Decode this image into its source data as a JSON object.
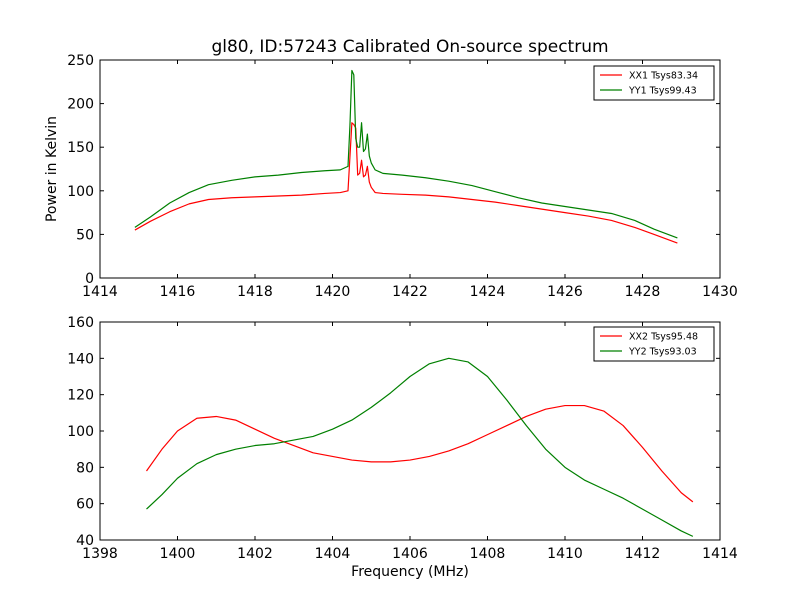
{
  "chart_data": [
    {
      "type": "line",
      "title": "gl80, ID:57243 Calibrated On-source spectrum",
      "xlabel": "",
      "ylabel": "Power in Kelvin",
      "xlim": [
        1414,
        1430
      ],
      "ylim": [
        0,
        250
      ],
      "xticks": [
        "1414",
        "1416",
        "1418",
        "1420",
        "1422",
        "1424",
        "1426",
        "1428",
        "1430"
      ],
      "yticks": [
        "0",
        "50",
        "100",
        "150",
        "200",
        "250"
      ],
      "grid": false,
      "legend_position": "top-right",
      "series": [
        {
          "name": "XX1 Tsys83.34",
          "color": "#ff0000",
          "x": [
            1414.9,
            1415.3,
            1415.8,
            1416.3,
            1416.8,
            1417.4,
            1418.0,
            1418.6,
            1419.2,
            1419.8,
            1420.2,
            1420.4,
            1420.5,
            1420.55,
            1420.6,
            1420.65,
            1420.7,
            1420.75,
            1420.8,
            1420.85,
            1420.9,
            1420.95,
            1421.0,
            1421.1,
            1421.3,
            1421.8,
            1422.4,
            1423.0,
            1423.6,
            1424.2,
            1424.8,
            1425.4,
            1426.0,
            1426.6,
            1427.2,
            1427.8,
            1428.3,
            1428.9
          ],
          "values": [
            55,
            65,
            76,
            85,
            90,
            92,
            93,
            94,
            95,
            97,
            98,
            100,
            178,
            176,
            172,
            118,
            120,
            135,
            116,
            118,
            128,
            110,
            104,
            98,
            97,
            96,
            95,
            93,
            90,
            87,
            83,
            79,
            75,
            71,
            66,
            58,
            50,
            40
          ]
        },
        {
          "name": "YY1 Tsys99.43",
          "color": "#008000",
          "x": [
            1414.9,
            1415.3,
            1415.8,
            1416.3,
            1416.8,
            1417.4,
            1418.0,
            1418.6,
            1419.2,
            1419.8,
            1420.2,
            1420.4,
            1420.45,
            1420.5,
            1420.55,
            1420.6,
            1420.65,
            1420.7,
            1420.75,
            1420.8,
            1420.85,
            1420.9,
            1420.95,
            1421.0,
            1421.1,
            1421.3,
            1421.8,
            1422.4,
            1423.0,
            1423.6,
            1424.2,
            1424.8,
            1425.4,
            1426.0,
            1426.6,
            1427.2,
            1427.8,
            1428.3,
            1428.9
          ],
          "values": [
            58,
            70,
            86,
            98,
            107,
            112,
            116,
            118,
            121,
            123,
            124,
            128,
            175,
            238,
            233,
            160,
            150,
            150,
            178,
            145,
            148,
            165,
            140,
            132,
            124,
            120,
            118,
            115,
            111,
            106,
            99,
            92,
            86,
            82,
            78,
            74,
            66,
            56,
            46
          ]
        }
      ]
    },
    {
      "type": "line",
      "title": "",
      "xlabel": "Frequency (MHz)",
      "ylabel": "",
      "xlim": [
        1398,
        1414
      ],
      "ylim": [
        40,
        160
      ],
      "xticks": [
        "1398",
        "1400",
        "1402",
        "1404",
        "1406",
        "1408",
        "1410",
        "1412",
        "1414"
      ],
      "yticks": [
        "40",
        "60",
        "80",
        "100",
        "120",
        "140",
        "160"
      ],
      "grid": false,
      "legend_position": "top-right",
      "series": [
        {
          "name": "XX2 Tsys95.48",
          "color": "#ff0000",
          "x": [
            1399.2,
            1399.6,
            1400.0,
            1400.5,
            1401.0,
            1401.5,
            1402.0,
            1402.5,
            1403.0,
            1403.5,
            1404.0,
            1404.5,
            1405.0,
            1405.5,
            1406.0,
            1406.5,
            1407.0,
            1407.5,
            1408.0,
            1408.5,
            1409.0,
            1409.5,
            1410.0,
            1410.5,
            1411.0,
            1411.5,
            1412.0,
            1412.5,
            1413.0,
            1413.3
          ],
          "values": [
            78,
            90,
            100,
            107,
            108,
            106,
            101,
            96,
            92,
            88,
            86,
            84,
            83,
            83,
            84,
            86,
            89,
            93,
            98,
            103,
            108,
            112,
            114,
            114,
            111,
            103,
            91,
            78,
            66,
            61
          ]
        },
        {
          "name": "YY2 Tsys93.03",
          "color": "#008000",
          "x": [
            1399.2,
            1399.6,
            1400.0,
            1400.5,
            1401.0,
            1401.5,
            1402.0,
            1402.5,
            1403.0,
            1403.5,
            1404.0,
            1404.5,
            1405.0,
            1405.5,
            1406.0,
            1406.5,
            1407.0,
            1407.5,
            1408.0,
            1408.5,
            1409.0,
            1409.5,
            1410.0,
            1410.5,
            1411.0,
            1411.5,
            1412.0,
            1412.5,
            1413.0,
            1413.3
          ],
          "values": [
            57,
            65,
            74,
            82,
            87,
            90,
            92,
            93,
            95,
            97,
            101,
            106,
            113,
            121,
            130,
            137,
            140,
            138,
            130,
            117,
            103,
            90,
            80,
            73,
            68,
            63,
            57,
            51,
            45,
            42
          ]
        }
      ]
    }
  ]
}
